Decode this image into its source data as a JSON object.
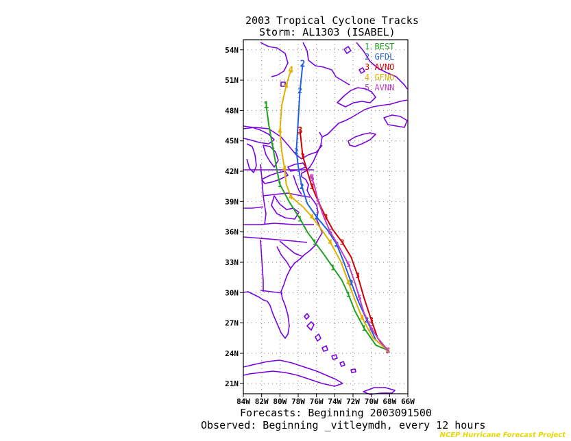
{
  "title_line1": "2003 Tropical Cyclone Tracks",
  "title_line2": "Storm: AL1303 (ISABEL)",
  "footer_line1": "Forecasts: Beginning 2003091500",
  "footer_line2": "Observed: Beginning _vitleymdh, every 12 hours",
  "credit": "NCEP Hurricane Forecast Project",
  "colors": {
    "coast": "#7a00e0",
    "grid": "#777777"
  },
  "lat_labels": [
    "54N",
    "51N",
    "48N",
    "45N",
    "42N",
    "39N",
    "36N",
    "33N",
    "30N",
    "27N",
    "24N",
    "21N"
  ],
  "lon_labels": [
    "84W",
    "82W",
    "80W",
    "78W",
    "76W",
    "74W",
    "72W",
    "70W",
    "68W",
    "66W"
  ],
  "chart_data": {
    "type": "line",
    "xlim": [
      -84,
      -66
    ],
    "ylim": [
      20,
      55
    ],
    "series": [
      {
        "id": "1",
        "name": "BEST",
        "color": "#1fa01f",
        "points": [
          [
            -68.2,
            24.3
          ],
          [
            -69.5,
            24.8
          ],
          [
            -70.8,
            26.5
          ],
          [
            -71.8,
            28.2
          ],
          [
            -72.5,
            29.8
          ],
          [
            -73.2,
            31.2
          ],
          [
            -74.2,
            32.5
          ],
          [
            -75.2,
            33.8
          ],
          [
            -76.2,
            35.0
          ],
          [
            -77.0,
            36.0
          ],
          [
            -77.8,
            37.3
          ],
          [
            -79.0,
            39.0
          ],
          [
            -80.0,
            40.7
          ],
          [
            -80.3,
            42.0
          ],
          [
            -80.8,
            44.5
          ],
          [
            -81.2,
            46.5
          ],
          [
            -81.5,
            48.5
          ]
        ]
      },
      {
        "id": "2",
        "name": "GFDL",
        "color": "#1f5fe0",
        "points": [
          [
            -68.2,
            24.3
          ],
          [
            -69.5,
            25.3
          ],
          [
            -70.5,
            27.3
          ],
          [
            -71.5,
            29.3
          ],
          [
            -72.2,
            31.0
          ],
          [
            -73.0,
            33.0
          ],
          [
            -73.8,
            34.8
          ],
          [
            -74.8,
            36.2
          ],
          [
            -76.0,
            37.5
          ],
          [
            -77.0,
            38.8
          ],
          [
            -77.6,
            40.5
          ],
          [
            -78.0,
            42.5
          ],
          [
            -78.2,
            44.0
          ],
          [
            -78.0,
            47.0
          ],
          [
            -77.8,
            50.0
          ],
          [
            -77.5,
            52.6
          ]
        ]
      },
      {
        "id": "3",
        "name": "AVNO",
        "color": "#d00000",
        "points": [
          [
            -68.2,
            24.3
          ],
          [
            -69.3,
            25.5
          ],
          [
            -70.0,
            27.3
          ],
          [
            -70.8,
            29.5
          ],
          [
            -71.5,
            31.7
          ],
          [
            -72.2,
            33.5
          ],
          [
            -73.2,
            35.0
          ],
          [
            -74.2,
            36.2
          ],
          [
            -75.0,
            37.5
          ],
          [
            -75.8,
            39.0
          ],
          [
            -76.5,
            40.5
          ],
          [
            -77.0,
            42.0
          ],
          [
            -77.5,
            43.5
          ],
          [
            -77.8,
            46.0
          ]
        ]
      },
      {
        "id": "4",
        "name": "GFNO",
        "color": "#e0b000",
        "points": [
          [
            -68.2,
            24.3
          ],
          [
            -69.8,
            25.5
          ],
          [
            -71.0,
            27.5
          ],
          [
            -71.8,
            29.3
          ],
          [
            -72.5,
            31.0
          ],
          [
            -73.3,
            33.0
          ],
          [
            -74.5,
            35.0
          ],
          [
            -75.5,
            36.3
          ],
          [
            -76.5,
            37.5
          ],
          [
            -77.5,
            38.5
          ],
          [
            -78.8,
            39.5
          ],
          [
            -79.3,
            40.7
          ],
          [
            -79.5,
            42.3
          ],
          [
            -79.8,
            44.0
          ],
          [
            -80.0,
            46.0
          ],
          [
            -79.8,
            48.5
          ],
          [
            -79.3,
            50.5
          ],
          [
            -78.8,
            52.0
          ]
        ]
      },
      {
        "id": "5",
        "name": "AVNN",
        "color": "#c040c0",
        "points": [
          [
            -68.2,
            24.3
          ],
          [
            -69.0,
            25.1
          ],
          [
            -70.0,
            26.5
          ],
          [
            -70.8,
            28.0
          ],
          [
            -71.3,
            29.5
          ],
          [
            -71.8,
            31.0
          ],
          [
            -72.5,
            32.8
          ],
          [
            -73.5,
            34.5
          ],
          [
            -74.5,
            36.0
          ],
          [
            -75.2,
            37.5
          ],
          [
            -75.8,
            39.0
          ],
          [
            -76.2,
            40.5
          ],
          [
            -76.5,
            41.3
          ]
        ]
      }
    ]
  }
}
